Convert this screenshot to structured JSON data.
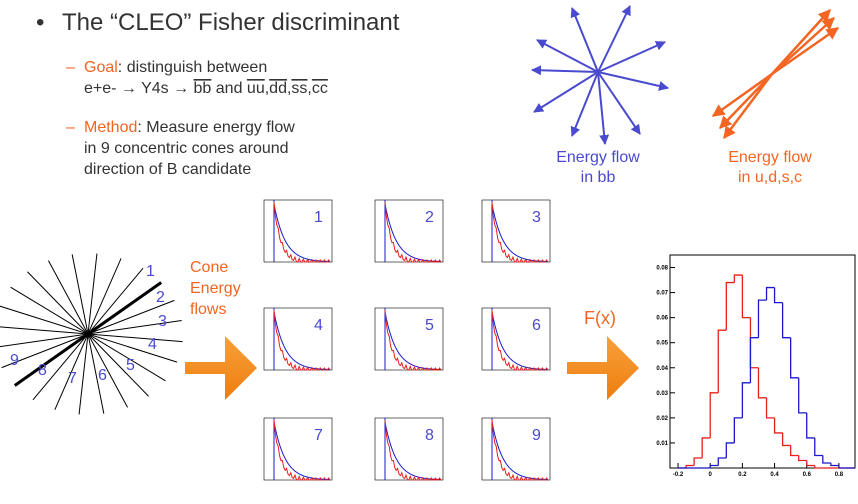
{
  "bullet": {
    "marker": "•",
    "text": "The “CLEO” Fisher discriminant"
  },
  "goal": {
    "dash": "–",
    "label": "Goal",
    "text": ": distinguish between",
    "line2": [
      {
        "text": "e+e- → Y4s → ",
        "overline": false
      },
      {
        "text": "bb",
        "overline": true
      },
      {
        "text": " and ",
        "overline": false
      },
      {
        "text": "uu",
        "overline": true
      },
      {
        "text": ",",
        "overline": false
      },
      {
        "text": "dd",
        "overline": true
      },
      {
        "text": ",",
        "overline": false
      },
      {
        "text": "ss",
        "overline": true
      },
      {
        "text": ",",
        "overline": false
      },
      {
        "text": "cc",
        "overline": true
      }
    ]
  },
  "method": {
    "dash": "–",
    "label": "Method",
    "lines": [
      ": Measure energy flow",
      "in 9 concentric cones around",
      "direction of B candidate"
    ]
  },
  "bb_label": [
    "Energy flow",
    "in bb"
  ],
  "udsc_label": [
    "Energy flow",
    "in u,d,s,c"
  ],
  "cone_numbers": [
    "1",
    "2",
    "3",
    "4",
    "5",
    "6",
    "7",
    "8",
    "9"
  ],
  "cone_caption": [
    "Cone",
    "Energy",
    "flows"
  ],
  "panel_numbers": [
    "1",
    "2",
    "3",
    "4",
    "5",
    "6",
    "7",
    "8",
    "9"
  ],
  "function_label": "F(x)",
  "fisher_plot": {
    "type": "histogram",
    "xlim": [
      -0.25,
      0.9
    ],
    "ylim": [
      0,
      0.085
    ],
    "xticks": [
      -0.2,
      0,
      0.2,
      0.4,
      0.6,
      0.8
    ],
    "yticks": [
      0.01,
      0.02,
      0.03,
      0.04,
      0.05,
      0.06,
      0.07,
      0.08
    ],
    "bins": [
      -0.2,
      -0.15,
      -0.1,
      -0.05,
      0,
      0.05,
      0.1,
      0.15,
      0.2,
      0.25,
      0.3,
      0.35,
      0.4,
      0.45,
      0.5,
      0.55,
      0.6,
      0.65,
      0.7,
      0.75,
      0.8,
      0.85,
      0.9
    ],
    "series": [
      {
        "color": "#e8201c",
        "values": [
          0,
          0.001,
          0.004,
          0.012,
          0.03,
          0.055,
          0.074,
          0.077,
          0.06,
          0.04,
          0.028,
          0.02,
          0.014,
          0.009,
          0.005,
          0.003,
          0.001,
          0,
          0,
          0,
          0,
          0
        ]
      },
      {
        "color": "#1a1acc",
        "values": [
          0,
          0,
          0,
          0,
          0.001,
          0.004,
          0.01,
          0.02,
          0.034,
          0.052,
          0.067,
          0.072,
          0.066,
          0.052,
          0.036,
          0.022,
          0.012,
          0.005,
          0.002,
          0.001,
          0,
          0
        ]
      }
    ]
  }
}
